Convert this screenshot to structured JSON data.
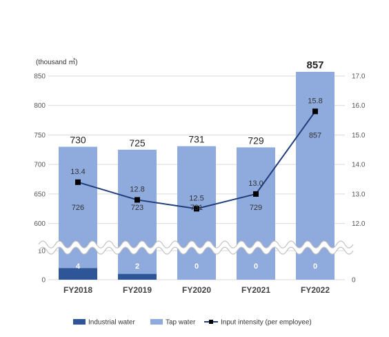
{
  "chart_data": {
    "type": "bar",
    "stacked": true,
    "unit_label": "(thousand ㎥)",
    "categories": [
      "FY2018",
      "FY2019",
      "FY2020",
      "FY2021",
      "FY2022"
    ],
    "series": [
      {
        "name": "Industrial water",
        "type": "bar",
        "axis": "left",
        "values": [
          4,
          2,
          0,
          0,
          0
        ],
        "labels": [
          "4",
          "2",
          "0",
          "0",
          "0"
        ],
        "color": "#2e5597"
      },
      {
        "name": "Tap water",
        "type": "bar",
        "axis": "left",
        "values": [
          726,
          723,
          731,
          729,
          857
        ],
        "labels": [
          "726",
          "723",
          "731",
          "729",
          "857"
        ],
        "color": "#8faadc"
      },
      {
        "name": "Input intensity (per employee)",
        "type": "line",
        "axis": "right",
        "values": [
          13.4,
          12.8,
          12.5,
          13.0,
          15.8
        ],
        "labels": [
          "13.4",
          "12.8",
          "12.5",
          "13.0",
          "15.8"
        ],
        "color": "#1f3d7a"
      }
    ],
    "totals": [
      "730",
      "725",
      "731",
      "729",
      "857"
    ],
    "left_axis": {
      "ticks_upper": [
        "850",
        "800",
        "750",
        "700",
        "650",
        "600"
      ],
      "ticks_lower": [
        "10",
        "0"
      ],
      "upper_range": [
        575,
        850
      ],
      "lower_range": [
        0,
        10
      ],
      "broken": true
    },
    "right_axis": {
      "ticks": [
        "17.0",
        "16.0",
        "15.0",
        "14.0",
        "13.0",
        "12.0"
      ],
      "bottom_tick": "0",
      "range": [
        11.5,
        17.0
      ]
    },
    "grid": true,
    "legend_position": "bottom"
  }
}
